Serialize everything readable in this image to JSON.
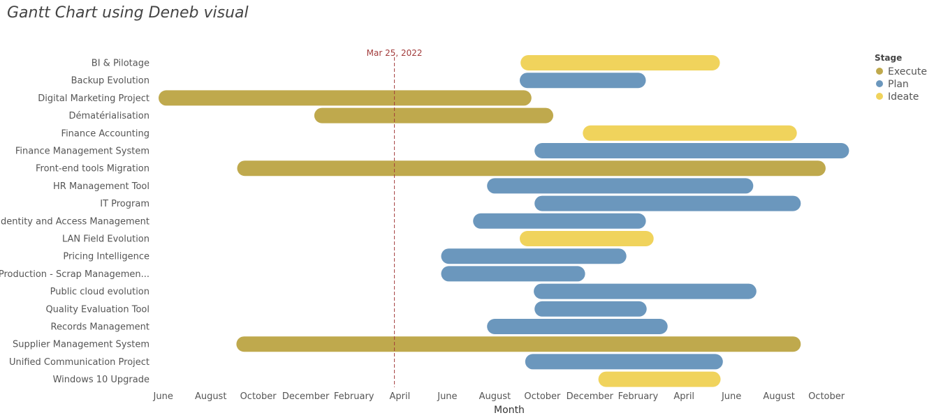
{
  "title": "Gantt Chart using Deneb visual",
  "chart_data": {
    "type": "gantt",
    "title": "Gantt Chart using Deneb visual",
    "xlabel": "Month",
    "ylabel": "",
    "x_range": [
      "2021-05-26",
      "2023-11-13"
    ],
    "x_ticks": [
      {
        "date": "2021-06-01",
        "label": "June"
      },
      {
        "date": "2021-08-01",
        "label": "August"
      },
      {
        "date": "2021-10-01",
        "label": "October"
      },
      {
        "date": "2021-12-01",
        "label": "December"
      },
      {
        "date": "2022-02-01",
        "label": "February"
      },
      {
        "date": "2022-04-01",
        "label": "April"
      },
      {
        "date": "2022-06-01",
        "label": "June"
      },
      {
        "date": "2022-08-01",
        "label": "August"
      },
      {
        "date": "2022-10-01",
        "label": "October"
      },
      {
        "date": "2022-12-01",
        "label": "December"
      },
      {
        "date": "2023-02-01",
        "label": "February"
      },
      {
        "date": "2023-04-01",
        "label": "April"
      },
      {
        "date": "2023-06-01",
        "label": "June"
      },
      {
        "date": "2023-08-01",
        "label": "August"
      },
      {
        "date": "2023-10-01",
        "label": "October"
      }
    ],
    "today_marker": {
      "date": "2022-03-25",
      "label": "Mar 25, 2022"
    },
    "legend": {
      "title": "Stage",
      "position": "top-right",
      "items": [
        {
          "name": "Execute",
          "color": "#bfa94d"
        },
        {
          "name": "Plan",
          "color": "#6b97bd"
        },
        {
          "name": "Ideate",
          "color": "#f0d35c"
        }
      ]
    },
    "tasks": [
      {
        "name": "BI & Pilotage",
        "stage": "Ideate",
        "start": "2022-09-03",
        "end": "2023-05-17"
      },
      {
        "name": "Backup Evolution",
        "stage": "Plan",
        "start": "2022-09-02",
        "end": "2023-02-11"
      },
      {
        "name": "Digital Marketing Project",
        "stage": "Execute",
        "start": "2021-05-26",
        "end": "2022-09-17"
      },
      {
        "name": "Dématérialisation",
        "stage": "Execute",
        "start": "2021-12-12",
        "end": "2022-10-15"
      },
      {
        "name": "Finance Accounting",
        "stage": "Ideate",
        "start": "2022-11-22",
        "end": "2023-08-24"
      },
      {
        "name": "Finance Management System",
        "stage": "Plan",
        "start": "2022-09-21",
        "end": "2023-10-30"
      },
      {
        "name": "Front-end tools Migration",
        "stage": "Execute",
        "start": "2021-09-04",
        "end": "2023-09-30"
      },
      {
        "name": "HR Management Tool",
        "stage": "Plan",
        "start": "2022-07-22",
        "end": "2023-06-29"
      },
      {
        "name": "IT Program",
        "stage": "Plan",
        "start": "2022-09-21",
        "end": "2023-08-29"
      },
      {
        "name": "Identity and Access Management",
        "stage": "Plan",
        "start": "2022-07-04",
        "end": "2023-02-11"
      },
      {
        "name": "LAN Field Evolution",
        "stage": "Ideate",
        "start": "2022-09-02",
        "end": "2023-02-21"
      },
      {
        "name": "Pricing Intelligence",
        "stage": "Plan",
        "start": "2022-05-24",
        "end": "2023-01-17"
      },
      {
        "name": "Production - Scrap Managemen...",
        "stage": "Plan",
        "start": "2022-05-24",
        "end": "2022-11-25"
      },
      {
        "name": "Public cloud evolution",
        "stage": "Plan",
        "start": "2022-09-20",
        "end": "2023-07-03"
      },
      {
        "name": "Quality Evaluation Tool",
        "stage": "Plan",
        "start": "2022-09-21",
        "end": "2023-02-12"
      },
      {
        "name": "Records Management",
        "stage": "Plan",
        "start": "2022-07-22",
        "end": "2023-03-11"
      },
      {
        "name": "Supplier Management System",
        "stage": "Execute",
        "start": "2021-09-03",
        "end": "2023-08-29"
      },
      {
        "name": "Unified Communication Project",
        "stage": "Plan",
        "start": "2022-09-09",
        "end": "2023-05-21"
      },
      {
        "name": "Windows 10 Upgrade",
        "stage": "Ideate",
        "start": "2022-12-12",
        "end": "2023-05-18"
      }
    ]
  }
}
